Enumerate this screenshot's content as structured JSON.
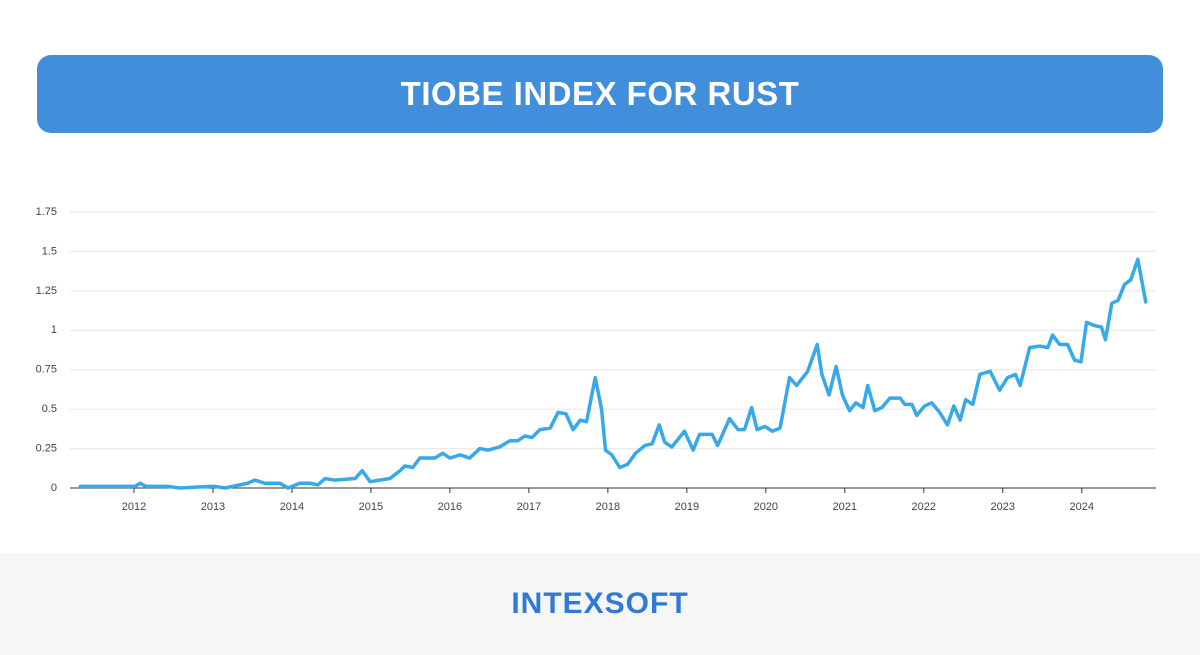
{
  "chart_data": {
    "type": "line",
    "title": "TIOBE INDEX FOR RUST",
    "x": [
      2011.32,
      2012.01,
      2012.08,
      2012.15,
      2012.33,
      2012.43,
      2012.58,
      2012.96,
      2013.03,
      2013.15,
      2013.34,
      2013.44,
      2013.53,
      2013.66,
      2013.85,
      2013.95,
      2014.1,
      2014.23,
      2014.33,
      2014.42,
      2014.54,
      2014.8,
      2014.89,
      2014.99,
      2015.11,
      2015.24,
      2015.37,
      2015.43,
      2015.53,
      2015.62,
      2015.81,
      2015.91,
      2016.0,
      2016.13,
      2016.25,
      2016.38,
      2016.48,
      2016.63,
      2016.76,
      2016.86,
      2016.95,
      2017.04,
      2017.14,
      2017.27,
      2017.37,
      2017.47,
      2017.56,
      2017.65,
      2017.73,
      2017.84,
      2017.92,
      2017.97,
      2018.05,
      2018.15,
      2018.25,
      2018.35,
      2018.47,
      2018.56,
      2018.65,
      2018.72,
      2018.81,
      2018.97,
      2019.08,
      2019.16,
      2019.32,
      2019.39,
      2019.54,
      2019.65,
      2019.73,
      2019.82,
      2019.89,
      2019.99,
      2020.08,
      2020.18,
      2020.3,
      2020.39,
      2020.53,
      2020.65,
      2020.71,
      2020.8,
      2020.89,
      2020.97,
      2021.06,
      2021.14,
      2021.23,
      2021.29,
      2021.38,
      2021.47,
      2021.57,
      2021.7,
      2021.76,
      2021.85,
      2021.91,
      2022.01,
      2022.1,
      2022.2,
      2022.3,
      2022.38,
      2022.46,
      2022.53,
      2022.62,
      2022.71,
      2022.84,
      2022.96,
      2023.06,
      2023.16,
      2023.22,
      2023.34,
      2023.47,
      2023.57,
      2023.63,
      2023.72,
      2023.82,
      2023.91,
      2023.99,
      2024.06,
      2024.16,
      2024.25,
      2024.3,
      2024.38,
      2024.46,
      2024.54,
      2024.62,
      2024.71,
      2024.81
    ],
    "series": [
      {
        "color": "#37a8ea",
        "values": [
          0.01,
          0.01,
          0.03,
          0.01,
          0.01,
          0.01,
          0,
          0.01,
          0.01,
          0,
          0.02,
          0.03,
          0.05,
          0.03,
          0.03,
          0,
          0.03,
          0.03,
          0.02,
          0.06,
          0.05,
          0.06,
          0.11,
          0.04,
          0.05,
          0.06,
          0.11,
          0.14,
          0.13,
          0.19,
          0.19,
          0.22,
          0.19,
          0.21,
          0.19,
          0.25,
          0.24,
          0.26,
          0.3,
          0.3,
          0.33,
          0.32,
          0.37,
          0.38,
          0.48,
          0.47,
          0.37,
          0.43,
          0.42,
          0.7,
          0.5,
          0.24,
          0.21,
          0.13,
          0.15,
          0.22,
          0.27,
          0.28,
          0.4,
          0.29,
          0.26,
          0.36,
          0.24,
          0.34,
          0.34,
          0.27,
          0.44,
          0.37,
          0.37,
          0.51,
          0.37,
          0.39,
          0.36,
          0.38,
          0.7,
          0.65,
          0.74,
          0.91,
          0.72,
          0.59,
          0.77,
          0.59,
          0.49,
          0.54,
          0.51,
          0.65,
          0.49,
          0.51,
          0.57,
          0.57,
          0.53,
          0.53,
          0.46,
          0.52,
          0.54,
          0.48,
          0.4,
          0.52,
          0.43,
          0.56,
          0.53,
          0.72,
          0.74,
          0.62,
          0.7,
          0.72,
          0.65,
          0.89,
          0.9,
          0.89,
          0.97,
          0.91,
          0.91,
          0.81,
          0.8,
          1.05,
          1.03,
          1.02,
          0.94,
          1.17,
          1.19,
          1.29,
          1.32,
          1.45,
          1.18
        ]
      }
    ],
    "xlim": [
      2011.19,
      2024.94
    ],
    "xticks": [
      2012,
      2013,
      2014,
      2015,
      2016,
      2017,
      2018,
      2019,
      2020,
      2021,
      2022,
      2023,
      2024
    ],
    "ylim": [
      0,
      1.75
    ],
    "yticks": [
      0,
      0.25,
      0.5,
      0.75,
      1,
      1.25,
      1.5,
      1.75
    ],
    "grid": true
  },
  "footer": {
    "logo": "INTEXSOFT"
  }
}
